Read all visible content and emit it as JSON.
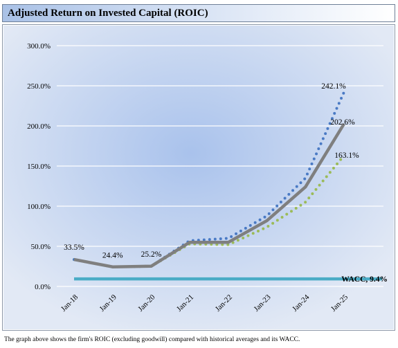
{
  "header": {
    "title": "Adjusted Return on Invested Capital (ROIC)"
  },
  "caption": "The graph above shows the firm's ROIC (excluding goodwill) compared with historical averages and its WACC.",
  "colors": {
    "series_solid": "#7f7f7f",
    "series_blue_dotted": "#4a7ac4",
    "series_green_dotted": "#9bbb59",
    "wacc": "#4bacc6",
    "plot_center": "#a9c2ec",
    "plot_edge": "#e2e9f5"
  },
  "chart_data": {
    "type": "line",
    "title": "Adjusted Return on Invested Capital (ROIC)",
    "categories": [
      "Jan-18",
      "Jan-19",
      "Jan-20",
      "Jan-21",
      "Jan-22",
      "Jan-23",
      "Jan-24",
      "Jan-25"
    ],
    "ylim": [
      0,
      300
    ],
    "yticks": [
      0,
      50,
      100,
      150,
      200,
      250,
      300
    ],
    "ytick_labels": [
      "0.0%",
      "50.0%",
      "100.0%",
      "150.0%",
      "200.0%",
      "250.0%",
      "300.0%"
    ],
    "grid": true,
    "legend": "none",
    "series": [
      {
        "style": "dotted",
        "color": "#4a7ac4",
        "values": [
          33.5,
          24.4,
          25.2,
          57,
          60,
          88,
          135,
          242.1
        ]
      },
      {
        "style": "solid",
        "color": "#7f7f7f",
        "values": [
          33.5,
          24.4,
          25.2,
          55,
          55,
          82,
          124,
          202.6
        ]
      },
      {
        "style": "dotted",
        "color": "#9bbb59",
        "values": [
          33.5,
          24.4,
          25.2,
          53,
          52,
          74,
          105,
          163.1
        ]
      }
    ],
    "data_labels": [
      {
        "category": "Jan-18",
        "value": 33.5,
        "text": "33.5%"
      },
      {
        "category": "Jan-19",
        "value": 24.4,
        "text": "24.4%"
      },
      {
        "category": "Jan-20",
        "value": 25.2,
        "text": "25.2%"
      },
      {
        "category": "Jan-25",
        "value": 242.1,
        "text": "242.1%"
      },
      {
        "category": "Jan-25",
        "value": 202.6,
        "text": "202.6%"
      },
      {
        "category": "Jan-25",
        "value": 163.1,
        "text": "163.1%"
      }
    ],
    "reference_line": {
      "value": 9.4,
      "label": "WACC, 9.4%",
      "color": "#4bacc6"
    }
  }
}
